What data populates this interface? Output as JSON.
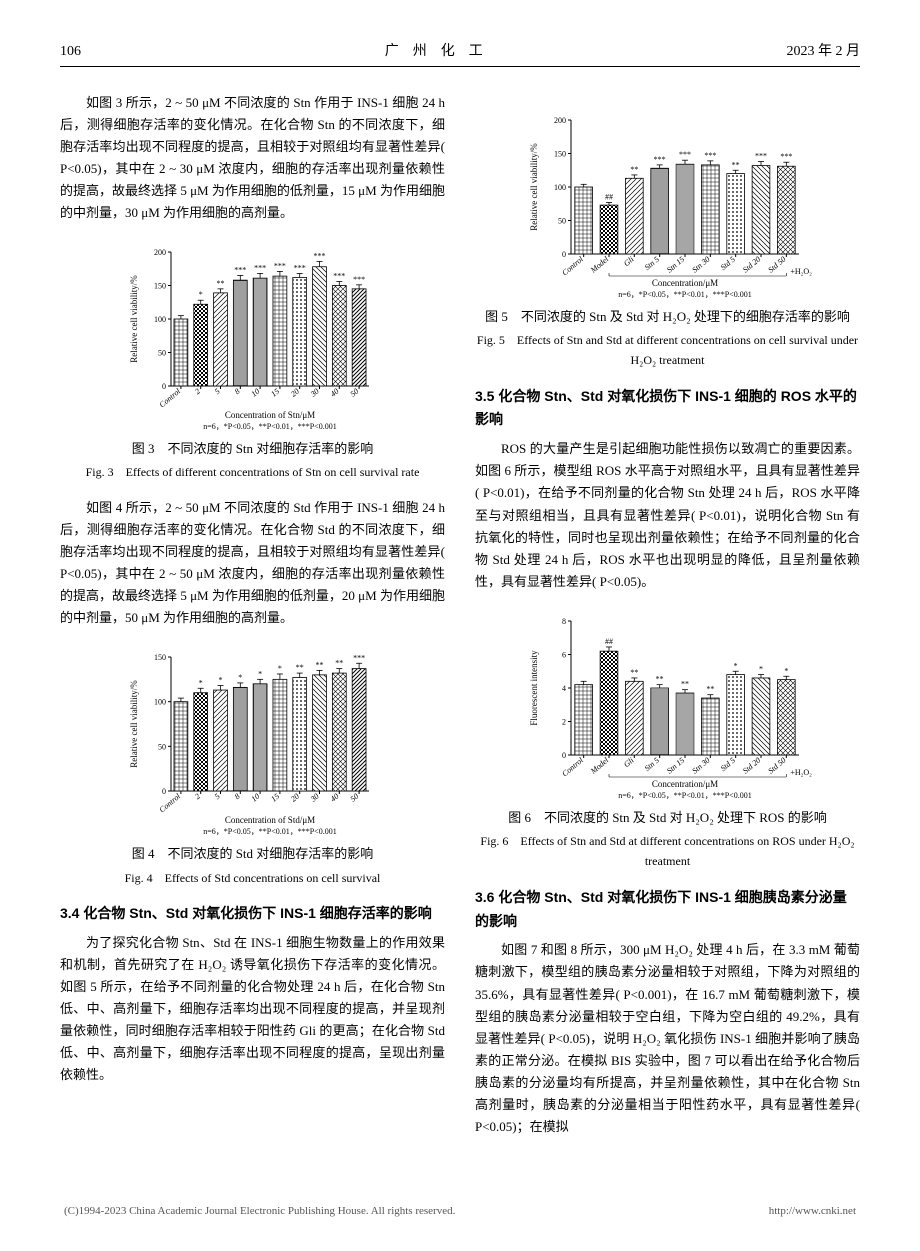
{
  "header": {
    "page_num": "106",
    "journal": "广　州　化　工",
    "date": "2023 年 2 月"
  },
  "col_left": {
    "para1": "如图 3 所示，2 ~ 50 μM 不同浓度的 Stn 作用于 INS-1 细胞 24 h 后，测得细胞存活率的变化情况。在化合物 Stn 的不同浓度下，细胞存活率均出现不同程度的提高，且相较于对照组均有显著性差异( P<0.05)，其中在 2 ~ 30 μM 浓度内，细胞的存活率出现剂量依赖性的提高，故最终选择 5 μM 为作用细胞的低剂量，15 μM 为作用细胞的中剂量，30 μM 为作用细胞的高剂量。",
    "fig3": {
      "caption_cn": "图 3　不同浓度的 Stn 对细胞存活率的影响",
      "caption_en": "Fig. 3　Effects of different concentrations of Stn on cell survival rate",
      "ylabel": "Relative cell viability/%",
      "xlabel": "Concentration of Stn/μM",
      "stats_note": "n=6，*P<0.05，**P<0.01，***P<0.001",
      "ylim": [
        0,
        200
      ],
      "ytick_step": 50,
      "categories": [
        "Control",
        "2",
        "5",
        "8",
        "10",
        "15",
        "20",
        "30",
        "40",
        "50"
      ],
      "values": [
        100,
        122,
        139,
        158,
        161,
        164,
        162,
        178,
        150,
        145
      ],
      "errors": [
        5,
        6,
        6,
        7,
        7,
        7,
        6,
        8,
        6,
        6
      ],
      "sigs": [
        "",
        "*",
        "**",
        "***",
        "***",
        "***",
        "***",
        "***",
        "***",
        "***"
      ],
      "bar_border": "#000000",
      "patterns": [
        "grid",
        "checker",
        "diag-r",
        "hstripe",
        "vstripe",
        "grid",
        "dots",
        "diag-l",
        "cross",
        "diag-r2"
      ]
    },
    "para2": "如图 4 所示，2 ~ 50 μM 不同浓度的 Std 作用于 INS-1 细胞 24 h 后，测得细胞存活率的变化情况。在化合物 Std 的不同浓度下，细胞存活率均出现不同程度的提高，且相较于对照组均有显著性差异( P<0.05)，其中在 2 ~ 50 μM 浓度内，细胞的存活率出现剂量依赖性的提高，故最终选择 5 μM 为作用细胞的低剂量，20 μM 为作用细胞的中剂量，50 μM 为作用细胞的高剂量。",
    "fig4": {
      "caption_cn": "图 4　不同浓度的 Std 对细胞存活率的影响",
      "caption_en": "Fig. 4　Effects of Std concentrations on cell survival",
      "ylabel": "Relative cell viability/%",
      "xlabel": "Concentration of Std/μM",
      "stats_note": "n=6，*P<0.05，**P<0.01，***P<0.001",
      "ylim": [
        0,
        150
      ],
      "ytick_step": 50,
      "categories": [
        "Control",
        "2",
        "5",
        "8",
        "10",
        "15",
        "20",
        "30",
        "40",
        "50"
      ],
      "values": [
        100,
        110,
        113,
        116,
        120,
        125,
        127,
        130,
        132,
        137
      ],
      "errors": [
        4,
        5,
        5,
        5,
        5,
        6,
        5,
        5,
        5,
        6
      ],
      "sigs": [
        "",
        "*",
        "*",
        "*",
        "*",
        "*",
        "**",
        "**",
        "**",
        "***"
      ],
      "bar_border": "#000000",
      "patterns": [
        "grid",
        "checker",
        "diag-r",
        "hstripe",
        "vstripe",
        "grid",
        "dots",
        "diag-l",
        "cross",
        "diag-r2"
      ]
    },
    "sec34_title": "3.4  化合物 Stn、Std 对氧化损伤下 INS-1 细胞存活率的影响",
    "para3": "为了探究化合物 Stn、Std 在 INS-1 细胞生物数量上的作用效果和机制，首先研究了在 H₂O₂ 诱导氧化损伤下存活率的变化情况。如图 5 所示，在给予不同剂量的化合物处理 24 h 后，在化合物 Stn 低、中、高剂量下，细胞存活率均出现不同程度的提高，并呈现剂量依赖性，同时细胞存活率相较于阳性药 Gli 的更高；在化合物 Std 低、中、高剂量下，细胞存活率出现不同程度的提高，呈现出剂量依赖性。"
  },
  "col_right": {
    "fig5": {
      "caption_cn": "图 5　不同浓度的 Stn 及 Std 对 H₂O₂ 处理下的细胞存活率的影响",
      "caption_en": "Fig. 5　Effects of Stn and Std at different concentrations on cell survival under H₂O₂ treatment",
      "ylabel": "Relative cell viability/%",
      "xlabel": "Concentration/μM",
      "stats_note": "n=6，*P<0.05，**P<0.01，***P<0.001",
      "extra_label": "+H₂O₂",
      "ylim": [
        0,
        200
      ],
      "ytick_step": 50,
      "categories": [
        "Control",
        "Model",
        "Gli",
        "Stn 5",
        "Stn 15",
        "Stn 30",
        "Std 5",
        "Std 20",
        "Std 50"
      ],
      "values": [
        100,
        73,
        113,
        128,
        134,
        133,
        120,
        132,
        131
      ],
      "errors": [
        4,
        4,
        5,
        5,
        6,
        6,
        5,
        6,
        6
      ],
      "sigs": [
        "",
        "##",
        "**",
        "***",
        "***",
        "***",
        "**",
        "***",
        "***"
      ],
      "bar_border": "#000000",
      "patterns": [
        "grid",
        "checker",
        "diag-r",
        "hstripe",
        "vstripe",
        "grid",
        "dots",
        "diag-l",
        "cross"
      ]
    },
    "sec35_title": "3.5  化合物 Stn、Std 对氧化损伤下 INS-1 细胞的 ROS 水平的影响",
    "para4": "ROS 的大量产生是引起细胞功能性损伤以致凋亡的重要因素。如图 6 所示，模型组 ROS 水平高于对照组水平，且具有显著性差异( P<0.01)，在给予不同剂量的化合物 Stn 处理 24 h 后，ROS 水平降至与对照组相当，且具有显著性差异( P<0.01)，说明化合物 Stn 有抗氧化的特性，同时也呈现出剂量依赖性；在给予不同剂量的化合物 Std 处理 24 h 后，ROS 水平也出现明显的降低，且呈剂量依赖性，具有显著性差异( P<0.05)。",
    "fig6": {
      "caption_cn": "图 6　不同浓度的 Stn 及 Std 对 H₂O₂ 处理下 ROS 的影响",
      "caption_en": "Fig. 6　Effects of Stn and Std at different concentrations on ROS under H₂O₂ treatment",
      "ylabel": "Fluorescent intensity",
      "xlabel": "Concentration/μM",
      "stats_note": "n=6，*P<0.05，**P<0.01，***P<0.001",
      "extra_label": "+H₂O₂",
      "ylim": [
        0,
        8
      ],
      "ytick_step": 2,
      "categories": [
        "Control",
        "Model",
        "Gli",
        "Stn 5",
        "Stn 15",
        "Stn 30",
        "Std 5",
        "Std 20",
        "Std 50"
      ],
      "values": [
        4.2,
        6.2,
        4.4,
        4.0,
        3.7,
        3.4,
        4.8,
        4.6,
        4.5
      ],
      "errors": [
        0.2,
        0.25,
        0.2,
        0.2,
        0.2,
        0.2,
        0.2,
        0.2,
        0.2
      ],
      "sigs": [
        "",
        "##",
        "**",
        "**",
        "**",
        "**",
        "*",
        "*",
        "*"
      ],
      "bar_border": "#000000",
      "patterns": [
        "grid",
        "checker",
        "diag-r",
        "hstripe",
        "vstripe",
        "grid",
        "dots",
        "diag-l",
        "cross"
      ]
    },
    "sec36_title": "3.6  化合物 Stn、Std 对氧化损伤下 INS-1 细胞胰岛素分泌量的影响",
    "para5": "如图 7 和图 8 所示，300 μM H₂O₂ 处理 4 h 后，在 3.3 mM 葡萄糖刺激下，模型组的胰岛素分泌量相较于对照组，下降为对照组的 35.6%，具有显著性差异( P<0.001)，在 16.7 mM 葡萄糖刺激下，模型组的胰岛素分泌量相较于空白组，下降为空白组的 49.2%，具有显著性差异( P<0.05)，说明 H₂O₂ 氧化损伤 INS-1 细胞并影响了胰岛素的正常分泌。在模拟 BIS 实验中，图 7 可以看出在给予化合物后胰岛素的分泌量均有所提高，并呈剂量依赖性，其中在化合物 Stn 高剂量时，胰岛素的分泌量相当于阳性药水平，具有显著性差异( P<0.05)；在模拟"
  },
  "footer": {
    "left": "(C)1994-2023 China Academic Journal Electronic Publishing House. All rights reserved.",
    "right": "http://www.cnki.net"
  }
}
